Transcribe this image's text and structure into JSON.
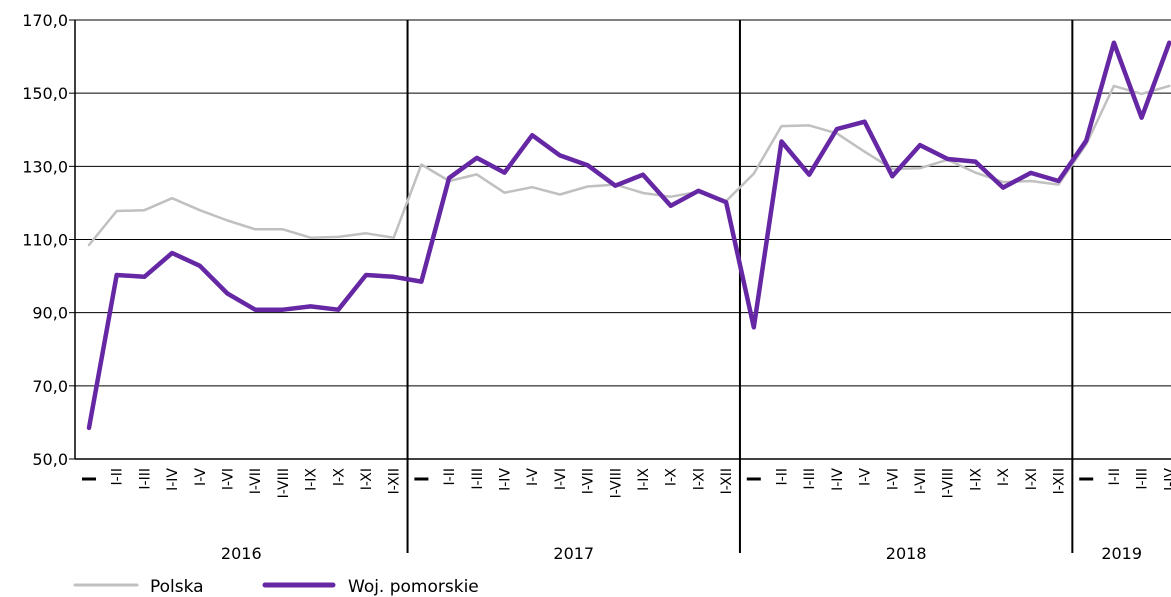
{
  "chart_data": {
    "type": "line",
    "title": "",
    "xlabel": "",
    "ylabel": "",
    "ylim": [
      50,
      170
    ],
    "yticks": [
      "50,0",
      "70,0",
      "90,0",
      "110,0",
      "130,0",
      "150,0",
      "170,0"
    ],
    "grid": true,
    "legend_position": "bottom-left",
    "years": [
      {
        "label": "2016",
        "months": 12
      },
      {
        "label": "2017",
        "months": 12
      },
      {
        "label": "2018",
        "months": 12
      },
      {
        "label": "2019",
        "months": 4
      }
    ],
    "x": [
      "I",
      "I-II",
      "I-III",
      "I-IV",
      "I-V",
      "I-VI",
      "I-VII",
      "I-VIII",
      "I-IX",
      "I-X",
      "I-XI",
      "I-XII",
      "I",
      "I-II",
      "I-III",
      "I-IV",
      "I-V",
      "I-VI",
      "I-VII",
      "I-VIII",
      "I-IX",
      "I-X",
      "I-XI",
      "I-XII",
      "I",
      "I-II",
      "I-III",
      "I-IV",
      "I-V",
      "I-VI",
      "I-VII",
      "I-VIII",
      "I-IX",
      "I-X",
      "I-XI",
      "I-XII",
      "I",
      "I-II",
      "I-III",
      "I-IV"
    ],
    "series": [
      {
        "name": "Polska",
        "color": "#c0c0c0",
        "values": [
          108.5,
          117.8,
          118.0,
          121.3,
          118.0,
          115.2,
          112.8,
          112.8,
          110.5,
          110.7,
          111.7,
          110.5,
          130.5,
          126.0,
          127.8,
          122.8,
          124.3,
          122.3,
          124.5,
          125.0,
          122.7,
          121.7,
          123.0,
          120.5,
          128.0,
          141.0,
          141.2,
          139.0,
          134.0,
          129.3,
          129.5,
          131.8,
          128.3,
          125.7,
          126.0,
          125.0,
          136.0,
          152.0,
          149.8,
          152.0
        ]
      },
      {
        "name": "Woj. pomorskie",
        "color": "#6627a4",
        "values": [
          58.5,
          100.3,
          99.8,
          106.3,
          102.8,
          95.2,
          90.8,
          90.8,
          91.7,
          90.8,
          100.3,
          99.8,
          98.5,
          126.8,
          132.3,
          128.3,
          138.5,
          133.0,
          130.3,
          124.7,
          127.7,
          119.2,
          123.3,
          120.2,
          86.0,
          136.8,
          127.7,
          140.2,
          142.2,
          127.3,
          135.8,
          132.0,
          131.3,
          124.2,
          128.2,
          126.0,
          137.0,
          163.8,
          143.3,
          163.8
        ]
      }
    ]
  }
}
